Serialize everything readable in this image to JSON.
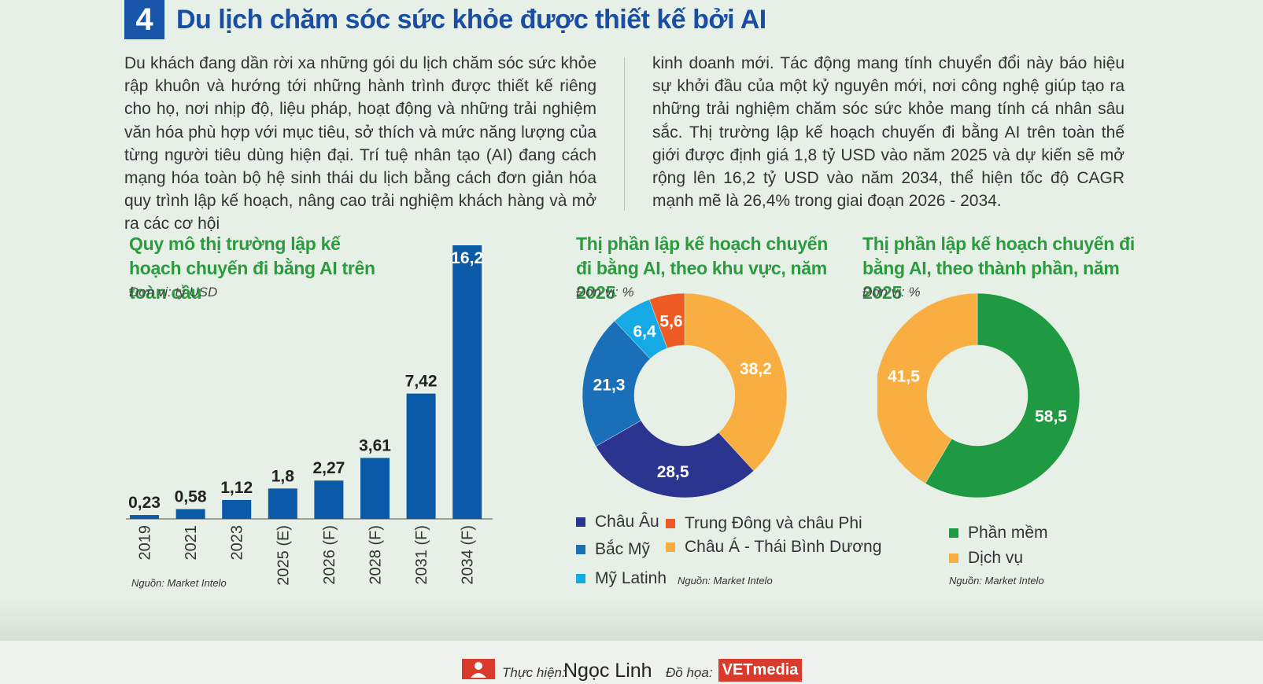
{
  "header": {
    "number": "4",
    "title": "Du lịch chăm sóc sức khỏe được thiết kế bởi AI"
  },
  "intro": {
    "left": "Du khách đang dần rời xa những gói du lịch chăm sóc sức khỏe rập khuôn và hướng tới những hành trình được thiết kế riêng cho họ, nơi nhịp độ, liệu pháp, hoạt động và những trải nghiệm văn hóa phù hợp với mục tiêu, sở thích và mức năng lượng của từng người tiêu dùng hiện đại. Trí tuệ nhân tạo (AI) đang cách mạng hóa toàn bộ hệ sinh thái du lịch bằng cách đơn giản hóa quy trình lập kế hoạch, nâng cao trải nghiệm khách hàng và mở ra các cơ hội",
    "right": "kinh doanh mới. Tác động mang tính chuyển đổi này báo hiệu sự khởi đầu của một kỷ nguyên mới, nơi công nghệ giúp tạo ra những trải nghiệm chăm sóc sức khỏe mang tính cá nhân sâu sắc. Thị trường lập kế hoạch chuyến đi bằng AI trên toàn thế giới được định giá 1,8 tỷ USD vào năm 2025 và dự kiến sẽ mở rộng lên 16,2 tỷ USD vào năm 2034, thể hiện tốc độ CAGR mạnh mẽ là 26,4% trong giai đoạn 2026 - 2034."
  },
  "colors": {
    "accent_blue": "#1756a9",
    "title_green": "#2c9a3f",
    "bar_blue": "#0b5aa8"
  },
  "chart_data": [
    {
      "type": "bar",
      "title": "Quy mô thị trường lập kế hoạch chuyến đi bằng AI trên toàn cầu",
      "unit": "Đơn vị: tỷ USD",
      "source": "Nguồn: Market Intelo",
      "categories": [
        "2019",
        "2021",
        "2023",
        "2025 (E)",
        "2026 (F)",
        "2028 (F)",
        "2031 (F)",
        "2034 (F)"
      ],
      "values": [
        0.23,
        0.58,
        1.12,
        1.8,
        2.27,
        3.61,
        7.42,
        16.2
      ],
      "value_labels": [
        "0,23",
        "0,58",
        "1,12",
        "1,8",
        "2,27",
        "3,61",
        "7,42",
        "16,2"
      ],
      "ylim": [
        0,
        16.2
      ],
      "color": "#0b5aa8"
    },
    {
      "type": "pie",
      "donut": true,
      "title": "Thị phần lập kế hoạch chuyến đi bằng AI, theo khu vực, năm 2025",
      "unit": "Đơn vị: %",
      "source": "Nguồn: Market Intelo",
      "slices": [
        {
          "label": "Châu Á - Thái Bình Dương",
          "value": 38.2,
          "text": "38,2",
          "color": "#f9ae42"
        },
        {
          "label": "Châu Âu",
          "value": 28.5,
          "text": "28,5",
          "color": "#2b3590"
        },
        {
          "label": "Bắc Mỹ",
          "value": 21.3,
          "text": "21,3",
          "color": "#1a70b8"
        },
        {
          "label": "Mỹ Latinh",
          "value": 6.4,
          "text": "6,4",
          "color": "#15a9e6"
        },
        {
          "label": "Trung Đông và châu Phi",
          "value": 5.6,
          "text": "5,6",
          "color": "#ee5a24"
        }
      ]
    },
    {
      "type": "pie",
      "donut": true,
      "title": "Thị phần lập kế hoạch chuyến đi bằng AI, theo thành phần, năm 2025",
      "unit": "Đơn vị: %",
      "source": "Nguồn: Market Intelo",
      "slices": [
        {
          "label": "Phần mềm",
          "value": 58.5,
          "text": "58,5",
          "color": "#1f9a43"
        },
        {
          "label": "Dịch vụ",
          "value": 41.5,
          "text": "41,5",
          "color": "#f9ae42"
        }
      ]
    }
  ],
  "footer": {
    "credit_label": "Thực hiện:",
    "credit_name": "Ngọc Linh",
    "design_label": "Đồ họa:",
    "brand": "VETmedia"
  }
}
